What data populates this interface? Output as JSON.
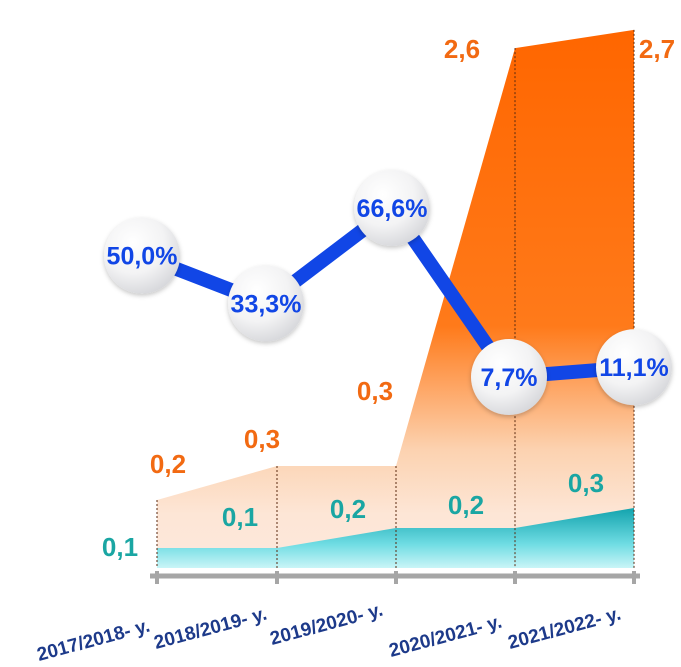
{
  "chart_data": {
    "type": "area",
    "categories": [
      "2017/2018- y.",
      "2018/2019- y.",
      "2019/2020- y.",
      "2020/2021- y.",
      "2021/2022- y."
    ],
    "series": [
      {
        "values": [
          0.2,
          0.3,
          0.3,
          2.6,
          2.7
        ],
        "labels": [
          "0,2",
          "0,3",
          "0,3",
          "2,6",
          "2,7"
        ],
        "color": "#ff6600"
      },
      {
        "values": [
          0.1,
          0.1,
          0.2,
          0.2,
          0.3
        ],
        "labels": [
          "0,1",
          "0,1",
          "0,2",
          "0,2",
          "0,3"
        ],
        "color": "#1aa6a3"
      },
      {
        "type": "line",
        "values": [
          50.0,
          33.3,
          66.6,
          7.7,
          11.1
        ],
        "labels": [
          "50,0%",
          "33,3%",
          "66,6%",
          "7,7%",
          "11,1%"
        ],
        "color": "#1146e6"
      }
    ],
    "grid": false,
    "legend": "none"
  }
}
